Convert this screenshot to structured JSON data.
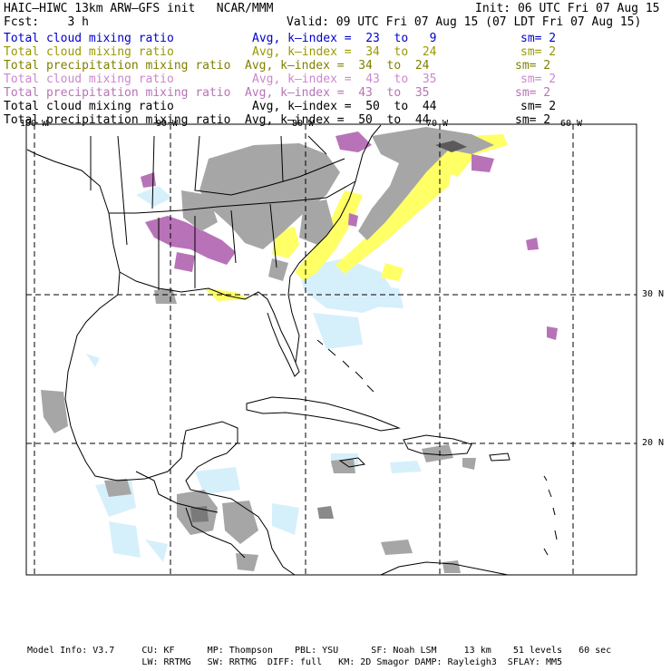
{
  "header": {
    "title": "HAIC—HIWC 13km ARW—GFS init   NCAR/MMM",
    "init": "Init: 06 UTC Fri 07 Aug 15",
    "fcst": "Fcst:    3 h",
    "valid": "Valid: 09 UTC Fri 07 Aug 15 (07 LDT Fri 07 Aug 15)"
  },
  "fields": [
    {
      "name": "Total cloud mixing ratio",
      "stat": "Avg, k—index =  23  to   9",
      "sm": "sm= 2",
      "color": "#0000cc"
    },
    {
      "name": "Total cloud mixing ratio",
      "stat": "Avg, k—index =  34  to  24",
      "sm": "sm= 2",
      "color": "#999900"
    },
    {
      "name": "Total precipitation mixing ratio",
      "stat": "Avg, k—index =  34  to  24",
      "sm": "sm= 2",
      "color": "#808000"
    },
    {
      "name": "Total cloud mixing ratio",
      "stat": "Avg, k—index =  43  to  35",
      "sm": "sm= 2",
      "color": "#cc88cc"
    },
    {
      "name": "Total precipitation mixing ratio",
      "stat": "Avg, k—index =  43  to  35",
      "sm": "sm= 2",
      "color": "#b873b8"
    },
    {
      "name": "Total cloud mixing ratio",
      "stat": "Avg, k—index =  50  to  44",
      "sm": "sm= 2",
      "color": "#000000"
    },
    {
      "name": "Total precipitation mixing ratio",
      "stat": "Avg, k—index =  50  to  44",
      "sm": "sm= 2",
      "color": "#000000"
    }
  ],
  "grid": {
    "lon_labels": [
      "100 W",
      "90 W",
      "80 W",
      "70 W",
      "60 W"
    ],
    "lat_labels": [
      "30 N",
      "20 N"
    ]
  },
  "colors": {
    "gray_cloud": "#a6a6a6",
    "dark_cloud": "#5a5a5a",
    "yellow": "#ffff66",
    "purple": "#b873b8",
    "light_blue": "#d6f0fb",
    "lines": "#000000"
  },
  "footer": {
    "line1": "Model Info: V3.7     CU: KF      MP: Thompson    PBL: YSU      SF: Noah LSM     13 km    51 levels   60 sec",
    "line2": "                     LW: RRTMG   SW: RRTMG  DIFF: full   KM: 2D Smagor DAMP: Rayleigh3  SFLAY: MM5"
  }
}
